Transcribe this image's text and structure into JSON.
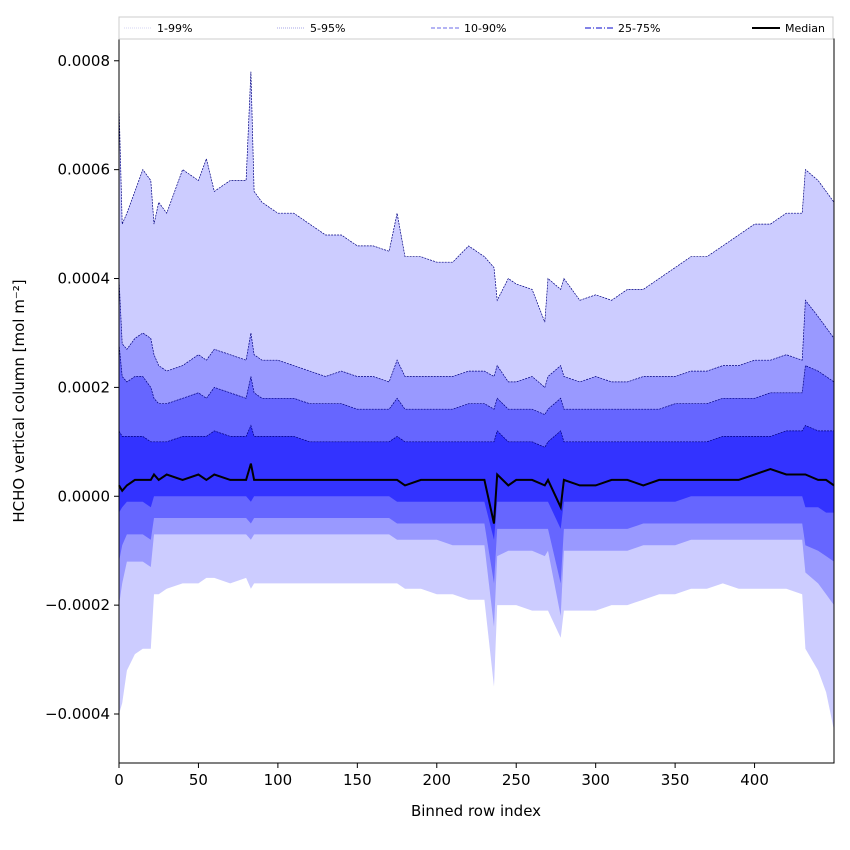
{
  "chart_data": {
    "type": "area",
    "xlabel": "Binned row index",
    "ylabel": "HCHO vertical column [mol m⁻²]",
    "xlim": [
      0,
      450
    ],
    "ylim": [
      -0.00049,
      0.00084
    ],
    "x_ticks": [
      0,
      50,
      100,
      150,
      200,
      250,
      300,
      350,
      400
    ],
    "y_ticks": [
      -0.0004,
      -0.0002,
      0.0,
      0.0002,
      0.0004,
      0.0006,
      0.0008
    ],
    "y_tick_labels": [
      "−0.0004",
      "−0.0002",
      "0.0000",
      "0.0002",
      "0.0004",
      "0.0006",
      "0.0008"
    ],
    "grid": false,
    "legend_position": "top",
    "x": [
      0,
      2,
      5,
      10,
      15,
      20,
      22,
      25,
      30,
      40,
      50,
      55,
      60,
      70,
      80,
      83,
      85,
      90,
      100,
      110,
      120,
      130,
      140,
      150,
      160,
      170,
      175,
      180,
      190,
      200,
      210,
      220,
      230,
      236,
      238,
      245,
      250,
      260,
      268,
      270,
      278,
      280,
      290,
      300,
      310,
      320,
      330,
      340,
      350,
      360,
      370,
      380,
      390,
      400,
      410,
      420,
      430,
      432,
      440,
      445,
      450
    ],
    "series": [
      {
        "name": "1-99%",
        "lower": [
          -0.0004,
          -0.00038,
          -0.00032,
          -0.00029,
          -0.00028,
          -0.00028,
          -0.00018,
          -0.00018,
          -0.00017,
          -0.00016,
          -0.00016,
          -0.00015,
          -0.00015,
          -0.00016,
          -0.00015,
          -0.00017,
          -0.00016,
          -0.00016,
          -0.00016,
          -0.00016,
          -0.00016,
          -0.00016,
          -0.00016,
          -0.00016,
          -0.00016,
          -0.00016,
          -0.00016,
          -0.00017,
          -0.00017,
          -0.00018,
          -0.00018,
          -0.00019,
          -0.00019,
          -0.00035,
          -0.0002,
          -0.0002,
          -0.0002,
          -0.00021,
          -0.00021,
          -0.00021,
          -0.00026,
          -0.00021,
          -0.00021,
          -0.00021,
          -0.0002,
          -0.0002,
          -0.00019,
          -0.00018,
          -0.00018,
          -0.00017,
          -0.00017,
          -0.00016,
          -0.00017,
          -0.00017,
          -0.00017,
          -0.00017,
          -0.00018,
          -0.00028,
          -0.00032,
          -0.00036,
          -0.00043
        ],
        "upper": [
          0.00072,
          0.0005,
          0.00052,
          0.00056,
          0.0006,
          0.00058,
          0.0005,
          0.00054,
          0.00052,
          0.0006,
          0.00058,
          0.00062,
          0.00056,
          0.00058,
          0.00058,
          0.00078,
          0.00056,
          0.00054,
          0.00052,
          0.00052,
          0.0005,
          0.00048,
          0.00048,
          0.00046,
          0.00046,
          0.00045,
          0.00052,
          0.00044,
          0.00044,
          0.00043,
          0.00043,
          0.00046,
          0.00044,
          0.00042,
          0.00036,
          0.0004,
          0.00039,
          0.00038,
          0.00032,
          0.0004,
          0.00038,
          0.0004,
          0.00036,
          0.00037,
          0.00036,
          0.00038,
          0.00038,
          0.0004,
          0.00042,
          0.00044,
          0.00044,
          0.00046,
          0.00048,
          0.0005,
          0.0005,
          0.00052,
          0.00052,
          0.0006,
          0.00058,
          0.00056,
          0.00054
        ]
      },
      {
        "name": "5-95%",
        "lower": [
          -0.0002,
          -0.00016,
          -0.00012,
          -0.00012,
          -0.00012,
          -0.00013,
          -7e-05,
          -7e-05,
          -7e-05,
          -7e-05,
          -7e-05,
          -7e-05,
          -7e-05,
          -7e-05,
          -7e-05,
          -8e-05,
          -7e-05,
          -7e-05,
          -7e-05,
          -7e-05,
          -7e-05,
          -7e-05,
          -7e-05,
          -7e-05,
          -7e-05,
          -7e-05,
          -8e-05,
          -8e-05,
          -8e-05,
          -8e-05,
          -9e-05,
          -9e-05,
          -9e-05,
          -0.00024,
          -0.00011,
          -0.0001,
          -0.0001,
          -0.0001,
          -0.00011,
          -0.0001,
          -0.00022,
          -0.0001,
          -0.0001,
          -0.0001,
          -0.0001,
          -0.0001,
          -9e-05,
          -9e-05,
          -9e-05,
          -8e-05,
          -8e-05,
          -8e-05,
          -8e-05,
          -8e-05,
          -8e-05,
          -8e-05,
          -8e-05,
          -0.00014,
          -0.00016,
          -0.00018,
          -0.0002
        ],
        "upper": [
          0.0004,
          0.00028,
          0.00027,
          0.00029,
          0.0003,
          0.00029,
          0.00026,
          0.00024,
          0.00023,
          0.00024,
          0.00026,
          0.00025,
          0.00027,
          0.00026,
          0.00025,
          0.0003,
          0.00026,
          0.00025,
          0.00025,
          0.00024,
          0.00023,
          0.00022,
          0.00023,
          0.00022,
          0.00022,
          0.00021,
          0.00025,
          0.00022,
          0.00022,
          0.00022,
          0.00022,
          0.00023,
          0.00023,
          0.00022,
          0.00024,
          0.00021,
          0.00021,
          0.00022,
          0.0002,
          0.00022,
          0.00024,
          0.00022,
          0.00021,
          0.00022,
          0.00021,
          0.00021,
          0.00022,
          0.00022,
          0.00022,
          0.00023,
          0.00023,
          0.00024,
          0.00024,
          0.00025,
          0.00025,
          0.00026,
          0.00025,
          0.00036,
          0.00033,
          0.00031,
          0.00029
        ]
      },
      {
        "name": "10-90%",
        "lower": [
          -0.00012,
          -9e-05,
          -7e-05,
          -7e-05,
          -7e-05,
          -8e-05,
          -4e-05,
          -4e-05,
          -4e-05,
          -4e-05,
          -4e-05,
          -4e-05,
          -4e-05,
          -4e-05,
          -4e-05,
          -5e-05,
          -4e-05,
          -4e-05,
          -4e-05,
          -4e-05,
          -4e-05,
          -4e-05,
          -4e-05,
          -4e-05,
          -4e-05,
          -4e-05,
          -5e-05,
          -5e-05,
          -5e-05,
          -5e-05,
          -5e-05,
          -5e-05,
          -5e-05,
          -0.00016,
          -6e-05,
          -6e-05,
          -6e-05,
          -6e-05,
          -6e-05,
          -6e-05,
          -0.00016,
          -6e-05,
          -6e-05,
          -6e-05,
          -6e-05,
          -6e-05,
          -5e-05,
          -5e-05,
          -5e-05,
          -5e-05,
          -5e-05,
          -5e-05,
          -5e-05,
          -5e-05,
          -5e-05,
          -5e-05,
          -5e-05,
          -9e-05,
          -0.0001,
          -0.00011,
          -0.00012
        ],
        "upper": [
          0.00028,
          0.00022,
          0.00021,
          0.00022,
          0.00022,
          0.0002,
          0.00018,
          0.00017,
          0.00017,
          0.00018,
          0.00019,
          0.00018,
          0.0002,
          0.00019,
          0.00018,
          0.00022,
          0.00019,
          0.00018,
          0.00018,
          0.00018,
          0.00017,
          0.00017,
          0.00017,
          0.00016,
          0.00016,
          0.00016,
          0.00018,
          0.00016,
          0.00016,
          0.00016,
          0.00016,
          0.00017,
          0.00017,
          0.00016,
          0.00018,
          0.00016,
          0.00016,
          0.00016,
          0.00015,
          0.00016,
          0.00018,
          0.00016,
          0.00016,
          0.00016,
          0.00016,
          0.00016,
          0.00016,
          0.00016,
          0.00017,
          0.00017,
          0.00017,
          0.00018,
          0.00018,
          0.00018,
          0.00019,
          0.00019,
          0.00019,
          0.00024,
          0.00023,
          0.00022,
          0.00021
        ]
      },
      {
        "name": "25-75%",
        "lower": [
          -3e-05,
          -2e-05,
          -1e-05,
          -1e-05,
          -1e-05,
          -2e-05,
          0.0,
          0.0,
          0.0,
          0.0,
          0.0,
          0.0,
          0.0,
          0.0,
          0.0,
          -1e-05,
          0.0,
          0.0,
          0.0,
          0.0,
          0.0,
          0.0,
          0.0,
          0.0,
          0.0,
          0.0,
          -1e-05,
          -1e-05,
          -1e-05,
          -1e-05,
          -1e-05,
          -1e-05,
          -1e-05,
          -8e-05,
          -1e-05,
          -1e-05,
          -1e-05,
          -1e-05,
          -1e-05,
          -1e-05,
          -6e-05,
          -1e-05,
          -1e-05,
          -1e-05,
          -1e-05,
          -1e-05,
          -1e-05,
          -1e-05,
          -1e-05,
          0.0,
          0.0,
          0.0,
          0.0,
          0.0,
          0.0,
          0.0,
          0.0,
          -2e-05,
          -2e-05,
          -3e-05,
          -3e-05
        ],
        "upper": [
          0.00012,
          0.00011,
          0.00011,
          0.00011,
          0.00011,
          0.0001,
          0.0001,
          0.0001,
          0.0001,
          0.00011,
          0.00011,
          0.00011,
          0.00012,
          0.00011,
          0.00011,
          0.00013,
          0.00011,
          0.00011,
          0.00011,
          0.00011,
          0.0001,
          0.0001,
          0.0001,
          0.0001,
          0.0001,
          0.0001,
          0.00011,
          0.0001,
          0.0001,
          0.0001,
          0.0001,
          0.0001,
          0.0001,
          0.0001,
          0.00012,
          0.0001,
          0.0001,
          0.0001,
          9e-05,
          0.0001,
          0.00012,
          0.0001,
          0.0001,
          0.0001,
          0.0001,
          0.0001,
          0.0001,
          0.0001,
          0.0001,
          0.0001,
          0.0001,
          0.00011,
          0.00011,
          0.00011,
          0.00011,
          0.00012,
          0.00012,
          0.00013,
          0.00012,
          0.00012,
          0.00012
        ]
      },
      {
        "name": "Median",
        "values": [
          2e-05,
          1e-05,
          2e-05,
          3e-05,
          3e-05,
          3e-05,
          4e-05,
          3e-05,
          4e-05,
          3e-05,
          4e-05,
          3e-05,
          4e-05,
          3e-05,
          3e-05,
          6e-05,
          3e-05,
          3e-05,
          3e-05,
          3e-05,
          3e-05,
          3e-05,
          3e-05,
          3e-05,
          3e-05,
          3e-05,
          3e-05,
          2e-05,
          3e-05,
          3e-05,
          3e-05,
          3e-05,
          3e-05,
          -5e-05,
          4e-05,
          2e-05,
          3e-05,
          3e-05,
          2e-05,
          3e-05,
          -2e-05,
          3e-05,
          2e-05,
          2e-05,
          3e-05,
          3e-05,
          2e-05,
          3e-05,
          3e-05,
          3e-05,
          3e-05,
          3e-05,
          3e-05,
          4e-05,
          5e-05,
          4e-05,
          4e-05,
          4e-05,
          3e-05,
          3e-05,
          2e-05
        ]
      }
    ]
  },
  "colors": {
    "band_1_99": "#ccccff",
    "band_5_95": "#9999ff",
    "band_10_90": "#6666ff",
    "band_25_75": "#3333ff",
    "edge_line": "#000080",
    "median_line": "#000000"
  },
  "legend": {
    "items": [
      {
        "label": "1-99%",
        "line_color": "#c8c8f0",
        "dash": "1,1",
        "width": 0.8
      },
      {
        "label": "5-95%",
        "line_color": "#8a8ae0",
        "dash": "1,1",
        "width": 0.8
      },
      {
        "label": "10-90%",
        "line_color": "#6a6ae8",
        "dash": "4,2",
        "width": 1.0
      },
      {
        "label": "25-75%",
        "line_color": "#3838d8",
        "dash": "6,2,1,2",
        "width": 1.2
      },
      {
        "label": "Median",
        "line_color": "#000000",
        "dash": "",
        "width": 2.0
      }
    ]
  }
}
